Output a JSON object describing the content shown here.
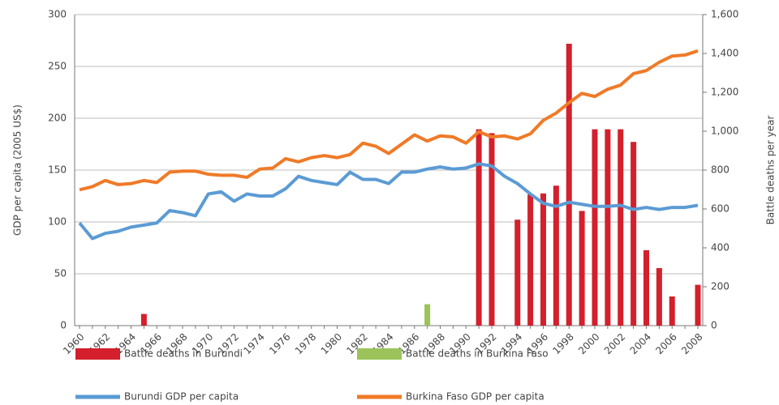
{
  "chart_data": {
    "type": "bar",
    "y_label": "GDP per capita (2005 US$)",
    "y2_label": "Battle deaths per year",
    "categories": [
      "1960",
      null,
      "1962",
      null,
      "1964",
      null,
      "1966",
      null,
      "1968",
      null,
      "1970",
      null,
      "1972",
      null,
      "1974",
      null,
      "1976",
      null,
      "1978",
      null,
      "1980",
      null,
      "1982",
      null,
      "1984",
      null,
      "1986",
      null,
      "1988",
      null,
      "1990",
      null,
      "1992",
      null,
      "1994",
      null,
      "1996",
      null,
      "1998",
      null,
      "2000",
      null,
      "2002",
      null,
      "2004",
      null,
      "2006",
      null,
      "2008"
    ],
    "ylim": [
      0,
      300
    ],
    "yticks": [
      0,
      50,
      100,
      150,
      200,
      250,
      300
    ],
    "y2lim": [
      0,
      1600
    ],
    "y2ticks": [
      0,
      200,
      400,
      600,
      800,
      {
        "value": 1000,
        "label": "1,000"
      },
      {
        "value": 1200,
        "label": "1,200"
      },
      {
        "value": 1400,
        "label": "1,400"
      },
      {
        "value": 1600,
        "label": "1,600"
      }
    ],
    "grid": true,
    "legend": "bottom",
    "series": [
      {
        "name": "Battle deaths in Burundi",
        "type": "bar",
        "axis": "y2",
        "color": "#d3202c",
        "values": [
          null,
          null,
          null,
          null,
          null,
          60,
          null,
          null,
          null,
          null,
          null,
          null,
          null,
          null,
          null,
          null,
          null,
          null,
          null,
          null,
          null,
          null,
          null,
          null,
          null,
          null,
          null,
          null,
          null,
          null,
          null,
          1010,
          990,
          null,
          545,
          675,
          680,
          720,
          1450,
          590,
          1010,
          1010,
          1010,
          945,
          388,
          296,
          150,
          null,
          210
        ]
      },
      {
        "name": "Battle deaths in Burkina Faso",
        "type": "bar",
        "axis": "y2",
        "color": "#9bc35a",
        "values": [
          null,
          null,
          null,
          null,
          null,
          null,
          null,
          null,
          null,
          null,
          null,
          null,
          null,
          null,
          null,
          null,
          null,
          null,
          null,
          null,
          null,
          null,
          null,
          null,
          null,
          null,
          null,
          110,
          null,
          null,
          null,
          null,
          null,
          null,
          null,
          null,
          null,
          null,
          null,
          null,
          null,
          null,
          null,
          null,
          null,
          null,
          null,
          null,
          null
        ]
      },
      {
        "name": "Burundi GDP per capita",
        "type": "line",
        "color": "#5b9bd5",
        "values": [
          99,
          84,
          89,
          91,
          95,
          97,
          99,
          111,
          109,
          106,
          127,
          129,
          120,
          127,
          125,
          125,
          132,
          144,
          140,
          138,
          136,
          148,
          141,
          141,
          137,
          148,
          148,
          151,
          153,
          151,
          152,
          156,
          154,
          144,
          137,
          127,
          118,
          115,
          119,
          117,
          115,
          115,
          116,
          112,
          114,
          112,
          114,
          114,
          116
        ]
      },
      {
        "name": "Burkina Faso GDP per capita",
        "type": "line",
        "color": "#f07a27",
        "values": [
          131,
          134,
          140,
          136,
          137,
          140,
          138,
          148,
          149,
          149,
          146,
          145,
          145,
          143,
          151,
          152,
          161,
          158,
          162,
          164,
          162,
          165,
          176,
          173,
          166,
          175,
          184,
          178,
          183,
          182,
          176,
          187,
          182,
          183,
          180,
          185,
          198,
          205,
          215,
          224,
          221,
          228,
          232,
          243,
          246,
          254,
          260,
          261,
          265
        ]
      }
    ]
  }
}
